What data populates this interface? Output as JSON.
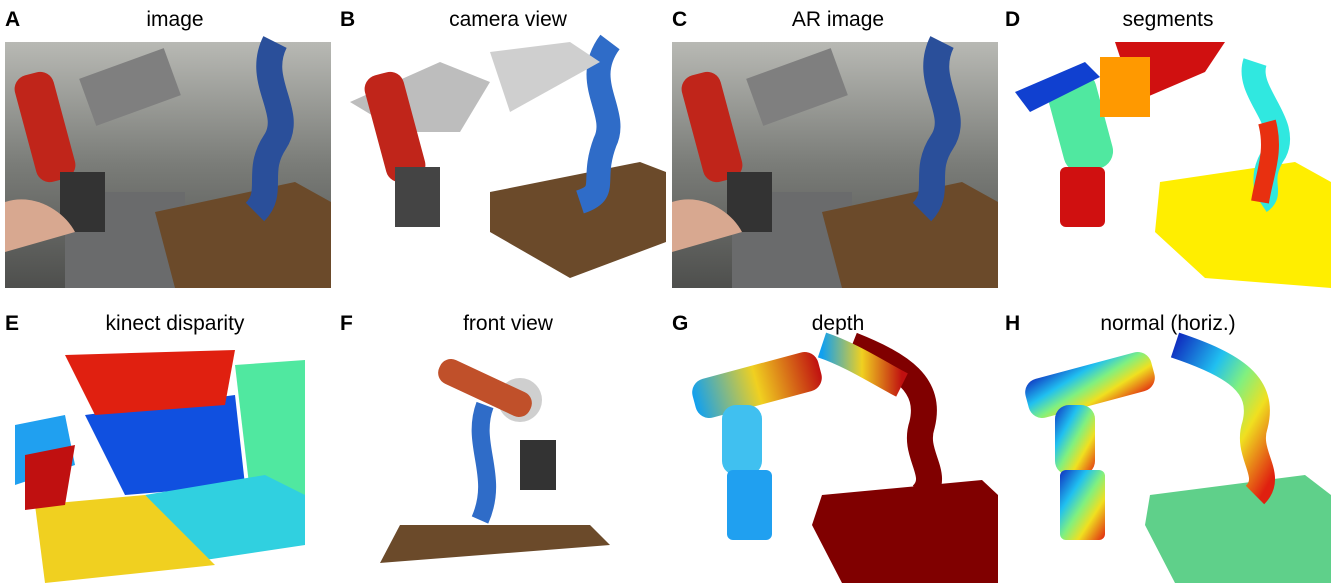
{
  "panels": [
    {
      "letter": "A",
      "title": "image"
    },
    {
      "letter": "B",
      "title": "camera view"
    },
    {
      "letter": "C",
      "title": "AR image"
    },
    {
      "letter": "D",
      "title": "segments"
    },
    {
      "letter": "E",
      "title": "kinect disparity"
    },
    {
      "letter": "F",
      "title": "front view"
    },
    {
      "letter": "G",
      "title": "depth"
    },
    {
      "letter": "H",
      "title": "normal (horiz.)"
    }
  ]
}
